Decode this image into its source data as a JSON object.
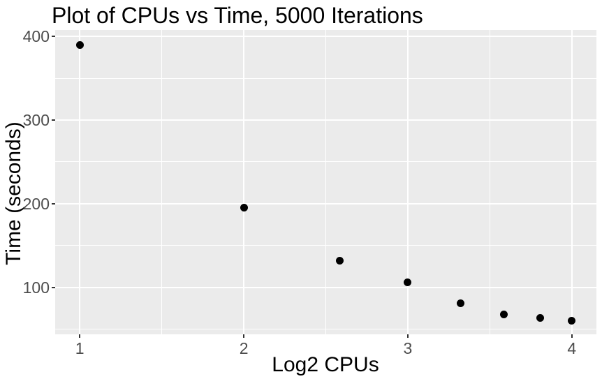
{
  "chart_data": {
    "type": "scatter",
    "title": "Plot of CPUs vs Time, 5000 Iterations",
    "xlabel": "Log2 CPUs",
    "ylabel": "Time (seconds)",
    "x": [
      1,
      2,
      2.585,
      3,
      3.322,
      3.585,
      3.807,
      4
    ],
    "y": [
      390,
      195,
      132,
      106,
      81,
      68,
      64,
      60
    ],
    "xlim": [
      0.85,
      4.15
    ],
    "ylim": [
      44,
      407.5
    ],
    "x_ticks": [
      1,
      2,
      3,
      4
    ],
    "x_tick_labels": [
      "1",
      "2",
      "3",
      "4"
    ],
    "y_ticks": [
      100,
      200,
      300,
      400
    ],
    "y_tick_labels": [
      "100",
      "200",
      "300",
      "400"
    ],
    "x_minor_ticks": [
      1.5,
      2.5,
      3.5
    ],
    "y_minor_ticks": [
      50,
      150,
      250,
      350
    ],
    "grid": true,
    "legend": "none",
    "point_color": "#000000",
    "panel_background": "#EBEBEB",
    "grid_color": "#FFFFFF",
    "tick_mark_color": "#333333",
    "tick_label_color": "#4D4D4D",
    "title_color": "#000000",
    "axis_title_color": "#000000"
  }
}
